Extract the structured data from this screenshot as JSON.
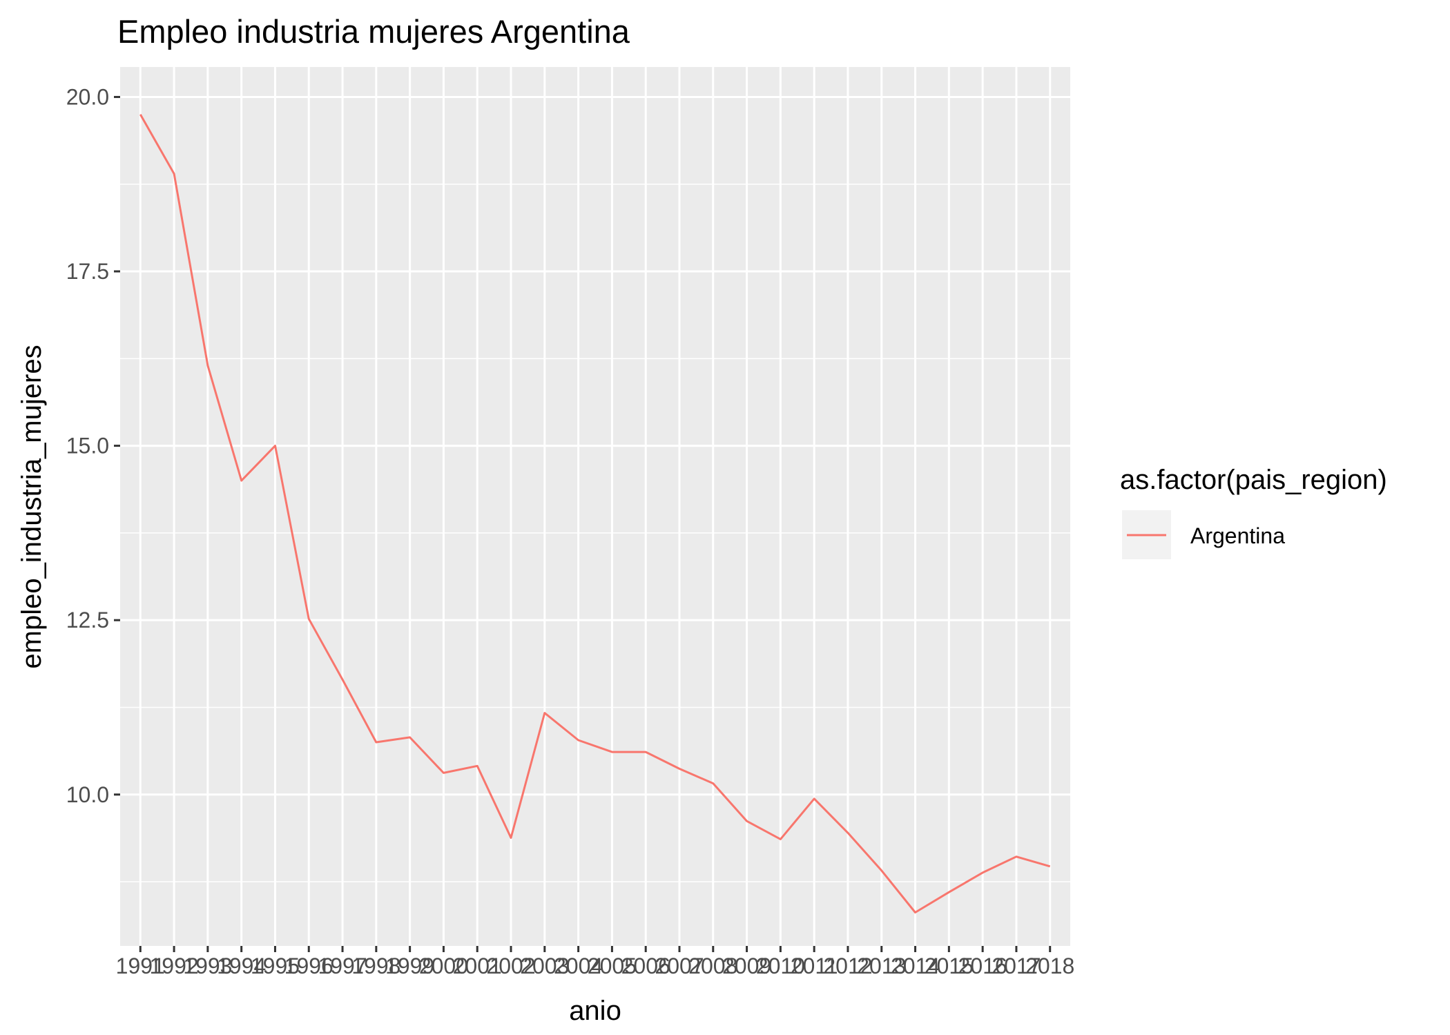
{
  "chart_data": {
    "type": "line",
    "title": "Empleo industria mujeres Argentina",
    "xlabel": "anio",
    "ylabel": "empleo_industria_mujeres",
    "x": [
      1991,
      1992,
      1993,
      1994,
      1995,
      1996,
      1997,
      1998,
      1999,
      2000,
      2001,
      2002,
      2003,
      2004,
      2005,
      2006,
      2007,
      2008,
      2009,
      2010,
      2011,
      2012,
      2013,
      2014,
      2015,
      2016,
      2017,
      2018
    ],
    "x_tick_labels": [
      "1991",
      "1992",
      "1993",
      "1994",
      "1995",
      "1996",
      "1997",
      "1998",
      "1999",
      "2000",
      "2001",
      "2002",
      "2003",
      "2004",
      "2005",
      "2006",
      "2007",
      "2008",
      "2009",
      "2010",
      "2011",
      "2012",
      "2013",
      "2014",
      "2015",
      "2016",
      "2017",
      "2018"
    ],
    "y_ticks": [
      10.0,
      12.5,
      15.0,
      17.5,
      20.0
    ],
    "y_tick_labels": [
      "10.0",
      "12.5",
      "15.0",
      "17.5",
      "20.0"
    ],
    "ylim": [
      7.83,
      20.43
    ],
    "grid": true,
    "legend": {
      "title": "as.factor(pais_region)",
      "placement": "right"
    },
    "series": [
      {
        "name": "Argentina",
        "color": "#F8766D",
        "values": [
          19.75,
          18.9,
          16.15,
          14.5,
          15.0,
          12.52,
          11.65,
          10.75,
          10.82,
          10.31,
          10.41,
          9.38,
          11.17,
          10.78,
          10.61,
          10.61,
          10.37,
          10.16,
          9.62,
          9.36,
          9.94,
          9.45,
          8.91,
          8.31,
          8.6,
          8.88,
          9.11,
          8.97
        ]
      }
    ]
  }
}
